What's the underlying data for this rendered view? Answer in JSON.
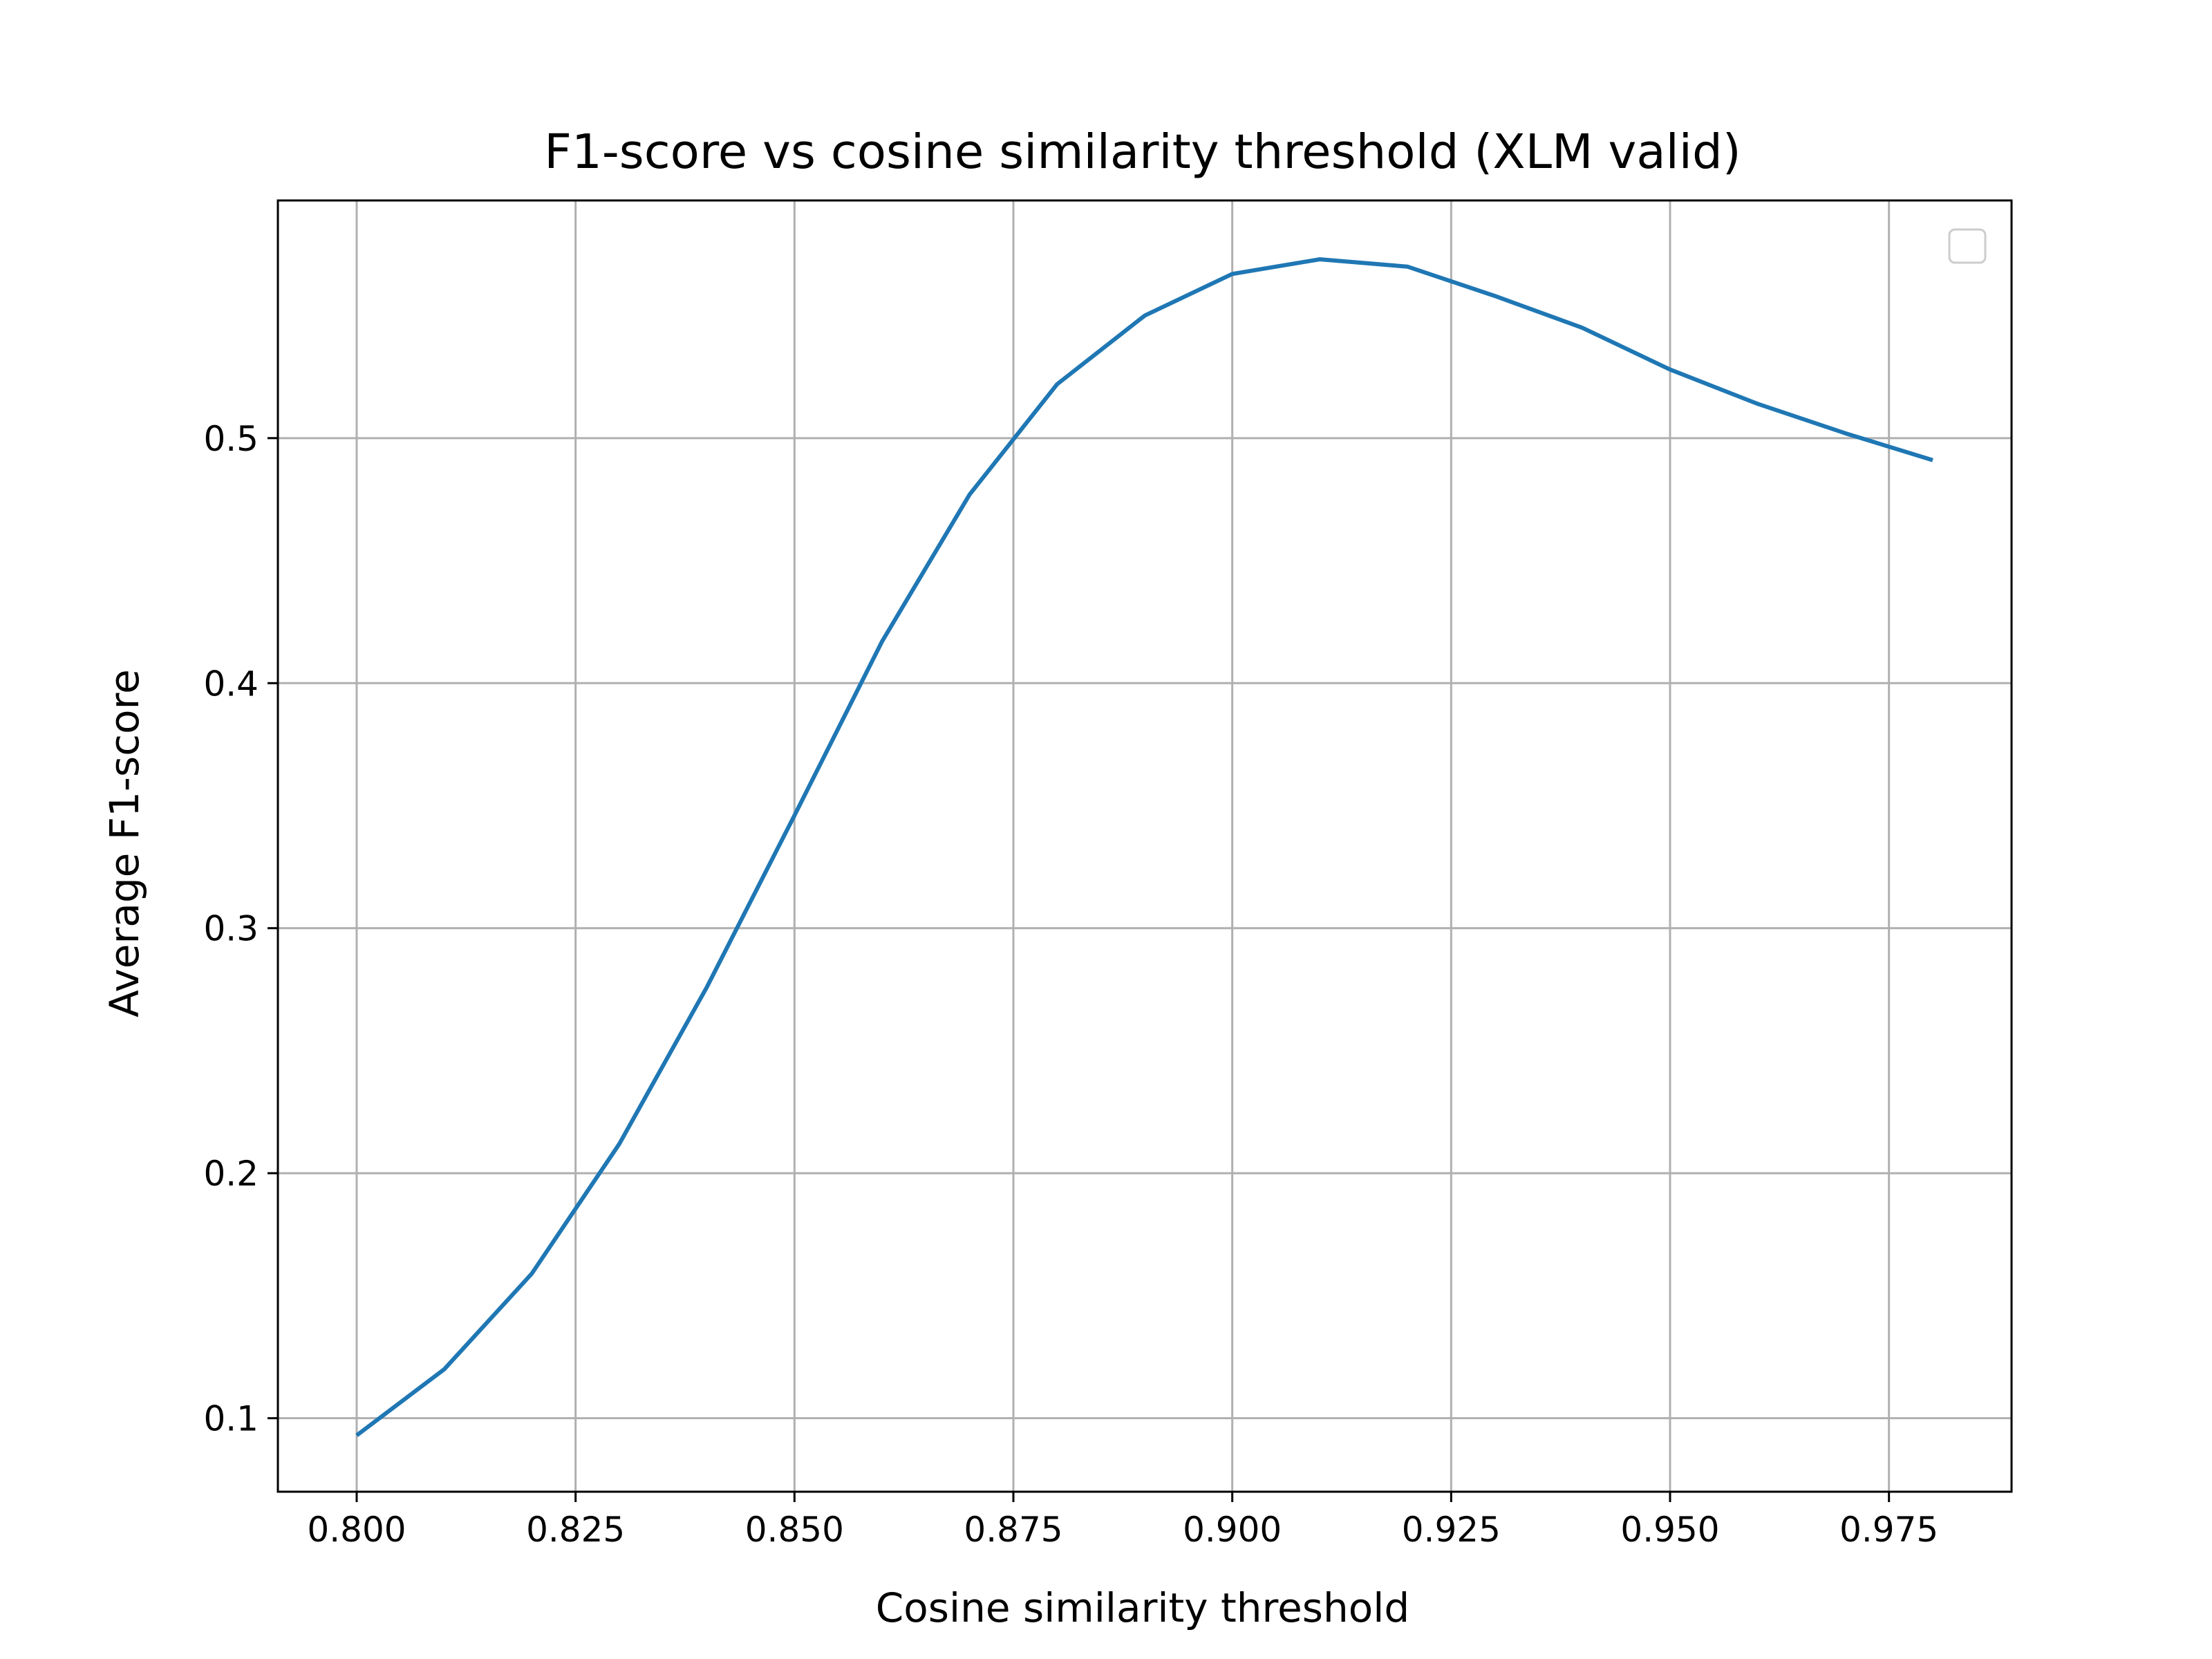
{
  "chart_data": {
    "type": "line",
    "title": "F1-score vs cosine similarity threshold (XLM valid)",
    "xlabel": "Cosine similarity threshold",
    "ylabel": "Average F1-score",
    "xlim": [
      0.791,
      0.989
    ],
    "ylim": [
      0.07,
      0.597
    ],
    "x_ticks": [
      0.8,
      0.825,
      0.85,
      0.875,
      0.9,
      0.925,
      0.95,
      0.975
    ],
    "x_tick_labels": [
      "0.800",
      "0.825",
      "0.850",
      "0.875",
      "0.900",
      "0.925",
      "0.950",
      "0.975"
    ],
    "y_ticks": [
      0.1,
      0.2,
      0.3,
      0.4,
      0.5
    ],
    "y_tick_labels": [
      "0.1",
      "0.2",
      "0.3",
      "0.4",
      "0.5"
    ],
    "grid": true,
    "legend": "top-right",
    "series": [
      {
        "color": "#1f77b4",
        "x": [
          0.8,
          0.81,
          0.82,
          0.83,
          0.84,
          0.85,
          0.86,
          0.87,
          0.88,
          0.89,
          0.9,
          0.91,
          0.92,
          0.93,
          0.94,
          0.95,
          0.96,
          0.97,
          0.98
        ],
        "y": [
          0.093,
          0.12,
          0.159,
          0.212,
          0.276,
          0.346,
          0.417,
          0.477,
          0.522,
          0.55,
          0.567,
          0.573,
          0.57,
          0.558,
          0.545,
          0.528,
          0.514,
          0.502,
          0.491
        ]
      }
    ]
  }
}
